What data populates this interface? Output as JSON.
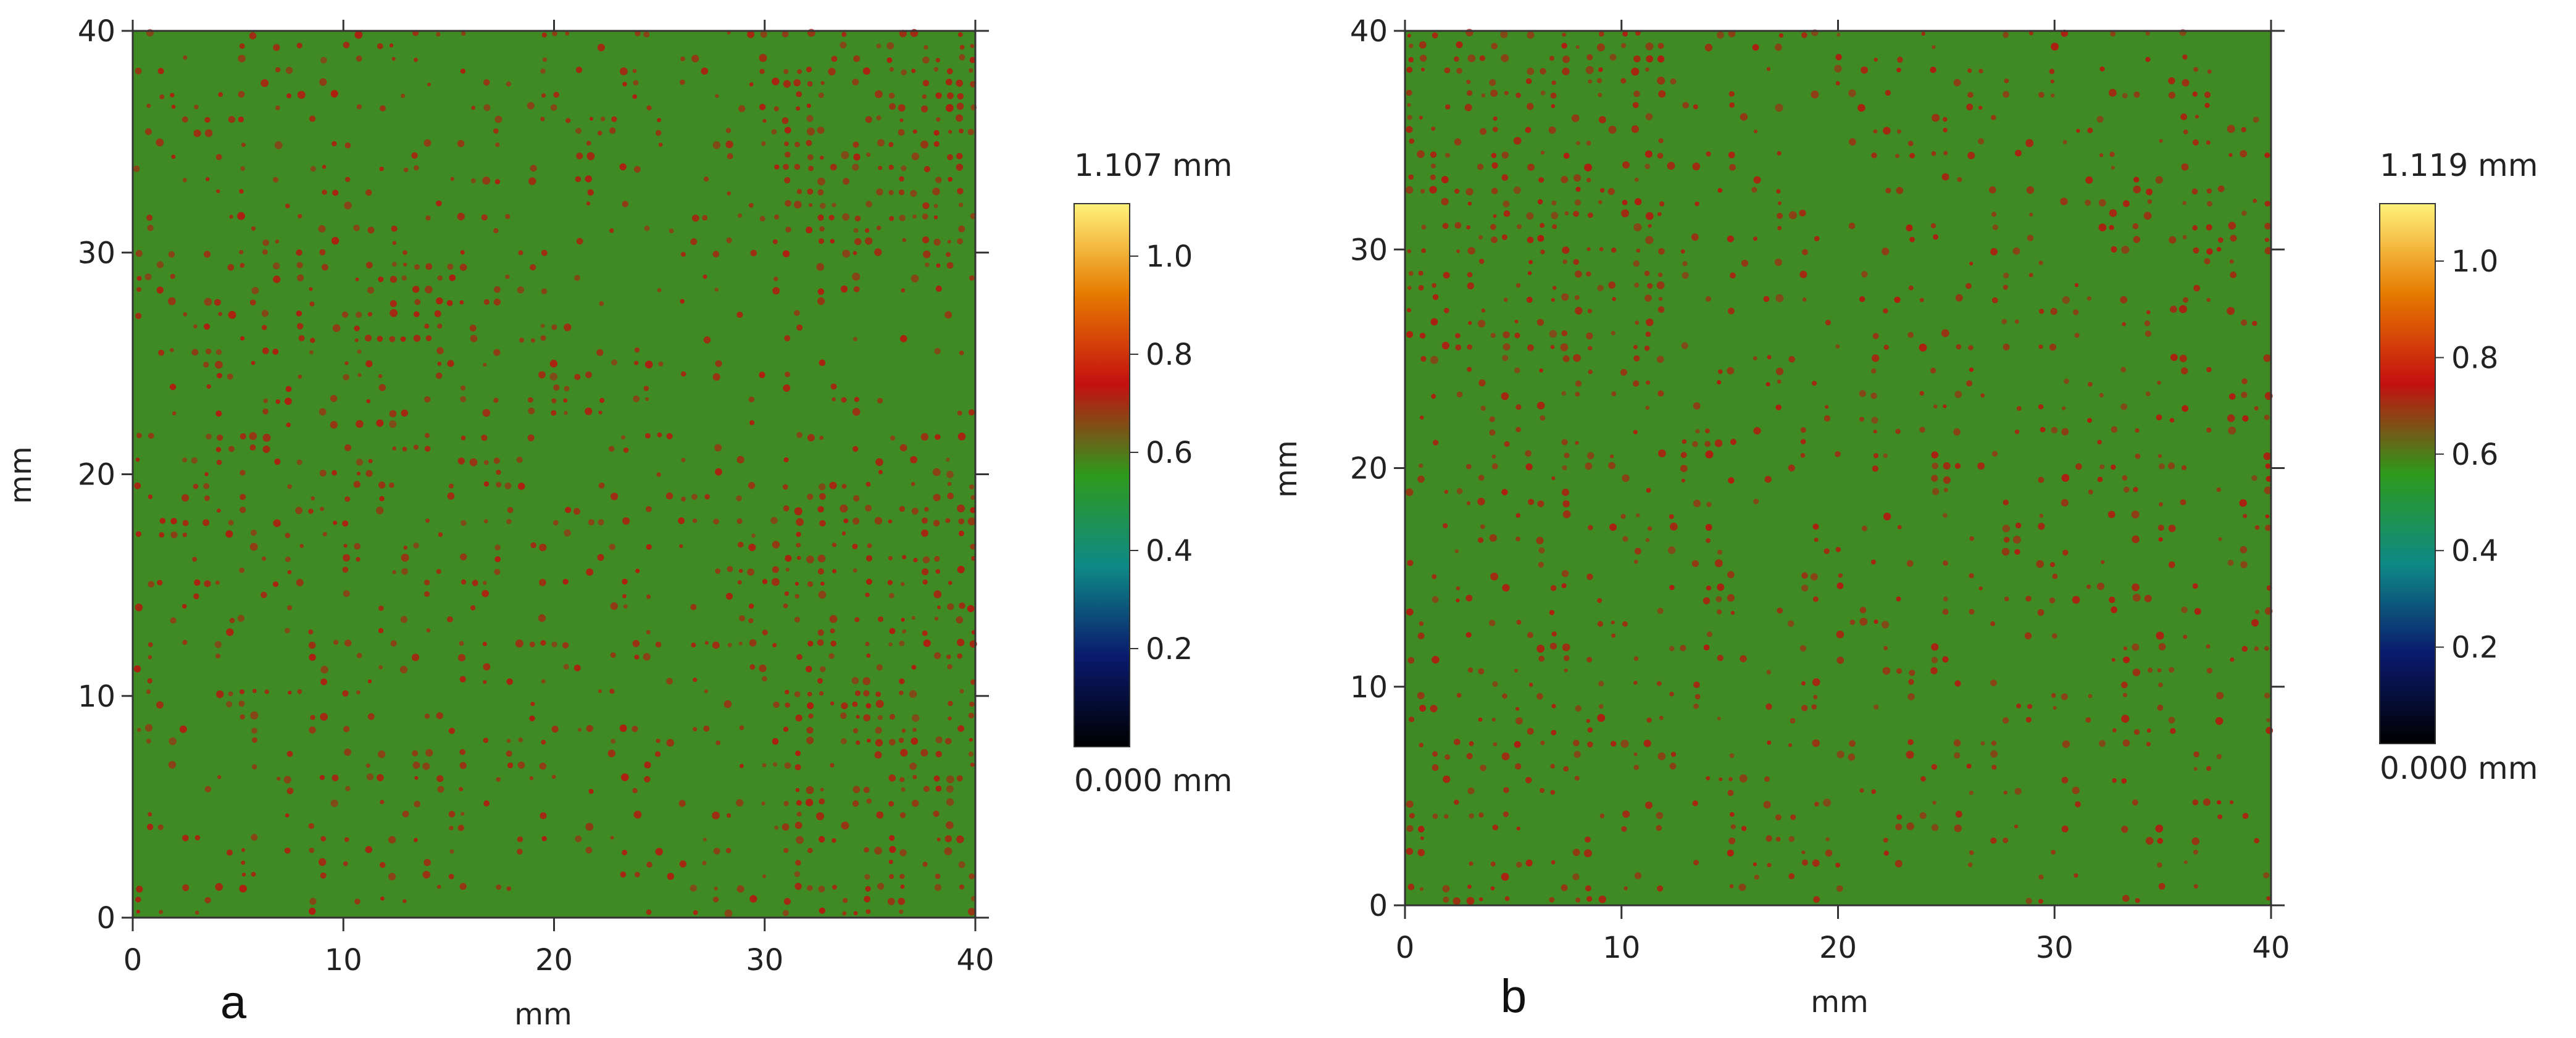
{
  "chart_data": [
    {
      "type": "heatmap",
      "panel_label": "a",
      "xlabel": "mm",
      "ylabel": "mm",
      "xlim": [
        0,
        40
      ],
      "ylim": [
        0,
        40
      ],
      "x_ticks": [
        "0",
        "10",
        "20",
        "30",
        "40"
      ],
      "y_ticks": [
        "0",
        "10",
        "20",
        "30",
        "40"
      ],
      "colorbar": {
        "max_label": "1.107 mm",
        "min_label": "0.000 mm",
        "range": [
          0.0,
          1.107
        ],
        "ticks": [
          "0.2",
          "0.4",
          "0.6",
          "0.8",
          "1.0"
        ],
        "colormap": [
          "#000000",
          "#0a1a6e",
          "#0e8a86",
          "#2e9a1c",
          "#c41010",
          "#e67a00",
          "#fff27a"
        ]
      },
      "base_value": 0.47,
      "texture": "dense grid of red dots (~0.6 mm) on green field; more red at top-right and lower-right, fewer at center",
      "red_dot_density": [
        {
          "x": [
            0,
            10
          ],
          "y": [
            30,
            40
          ],
          "level": 0.35
        },
        {
          "x": [
            30,
            40
          ],
          "y": [
            30,
            40
          ],
          "level": 0.85
        },
        {
          "x": [
            30,
            40
          ],
          "y": [
            0,
            20
          ],
          "level": 0.75
        },
        {
          "x": [
            0,
            20
          ],
          "y": [
            15,
            30
          ],
          "level": 0.5
        },
        {
          "x": [
            15,
            30
          ],
          "y": [
            10,
            30
          ],
          "level": 0.2
        }
      ]
    },
    {
      "type": "heatmap",
      "panel_label": "b",
      "xlabel": "mm",
      "ylabel": "mm",
      "xlim": [
        0,
        40
      ],
      "ylim": [
        0,
        40
      ],
      "x_ticks": [
        "0",
        "10",
        "20",
        "30",
        "40"
      ],
      "y_ticks": [
        "0",
        "10",
        "20",
        "30",
        "40"
      ],
      "colorbar": {
        "max_label": "1.119 mm",
        "min_label": "0.000 mm",
        "range": [
          0.0,
          1.119
        ],
        "ticks": [
          "0.2",
          "0.4",
          "0.6",
          "0.8",
          "1.0"
        ],
        "colormap": [
          "#000000",
          "#0a1a6e",
          "#0e8a86",
          "#2e9a1c",
          "#c41010",
          "#e67a00",
          "#fff27a"
        ]
      },
      "base_value": 0.46,
      "texture": "dense grid of red dots (~0.6 mm) on green field; more red at top-left, fewer at center",
      "red_dot_density": [
        {
          "x": [
            0,
            12
          ],
          "y": [
            25,
            40
          ],
          "level": 0.8
        },
        {
          "x": [
            0,
            10
          ],
          "y": [
            0,
            25
          ],
          "level": 0.45
        },
        {
          "x": [
            10,
            30
          ],
          "y": [
            10,
            30
          ],
          "level": 0.2
        },
        {
          "x": [
            30,
            40
          ],
          "y": [
            0,
            40
          ],
          "level": 0.35
        }
      ]
    }
  ],
  "colors": {
    "field_green": "#3f8a22",
    "dot_red": "#b21a10",
    "frame": "#333333"
  }
}
